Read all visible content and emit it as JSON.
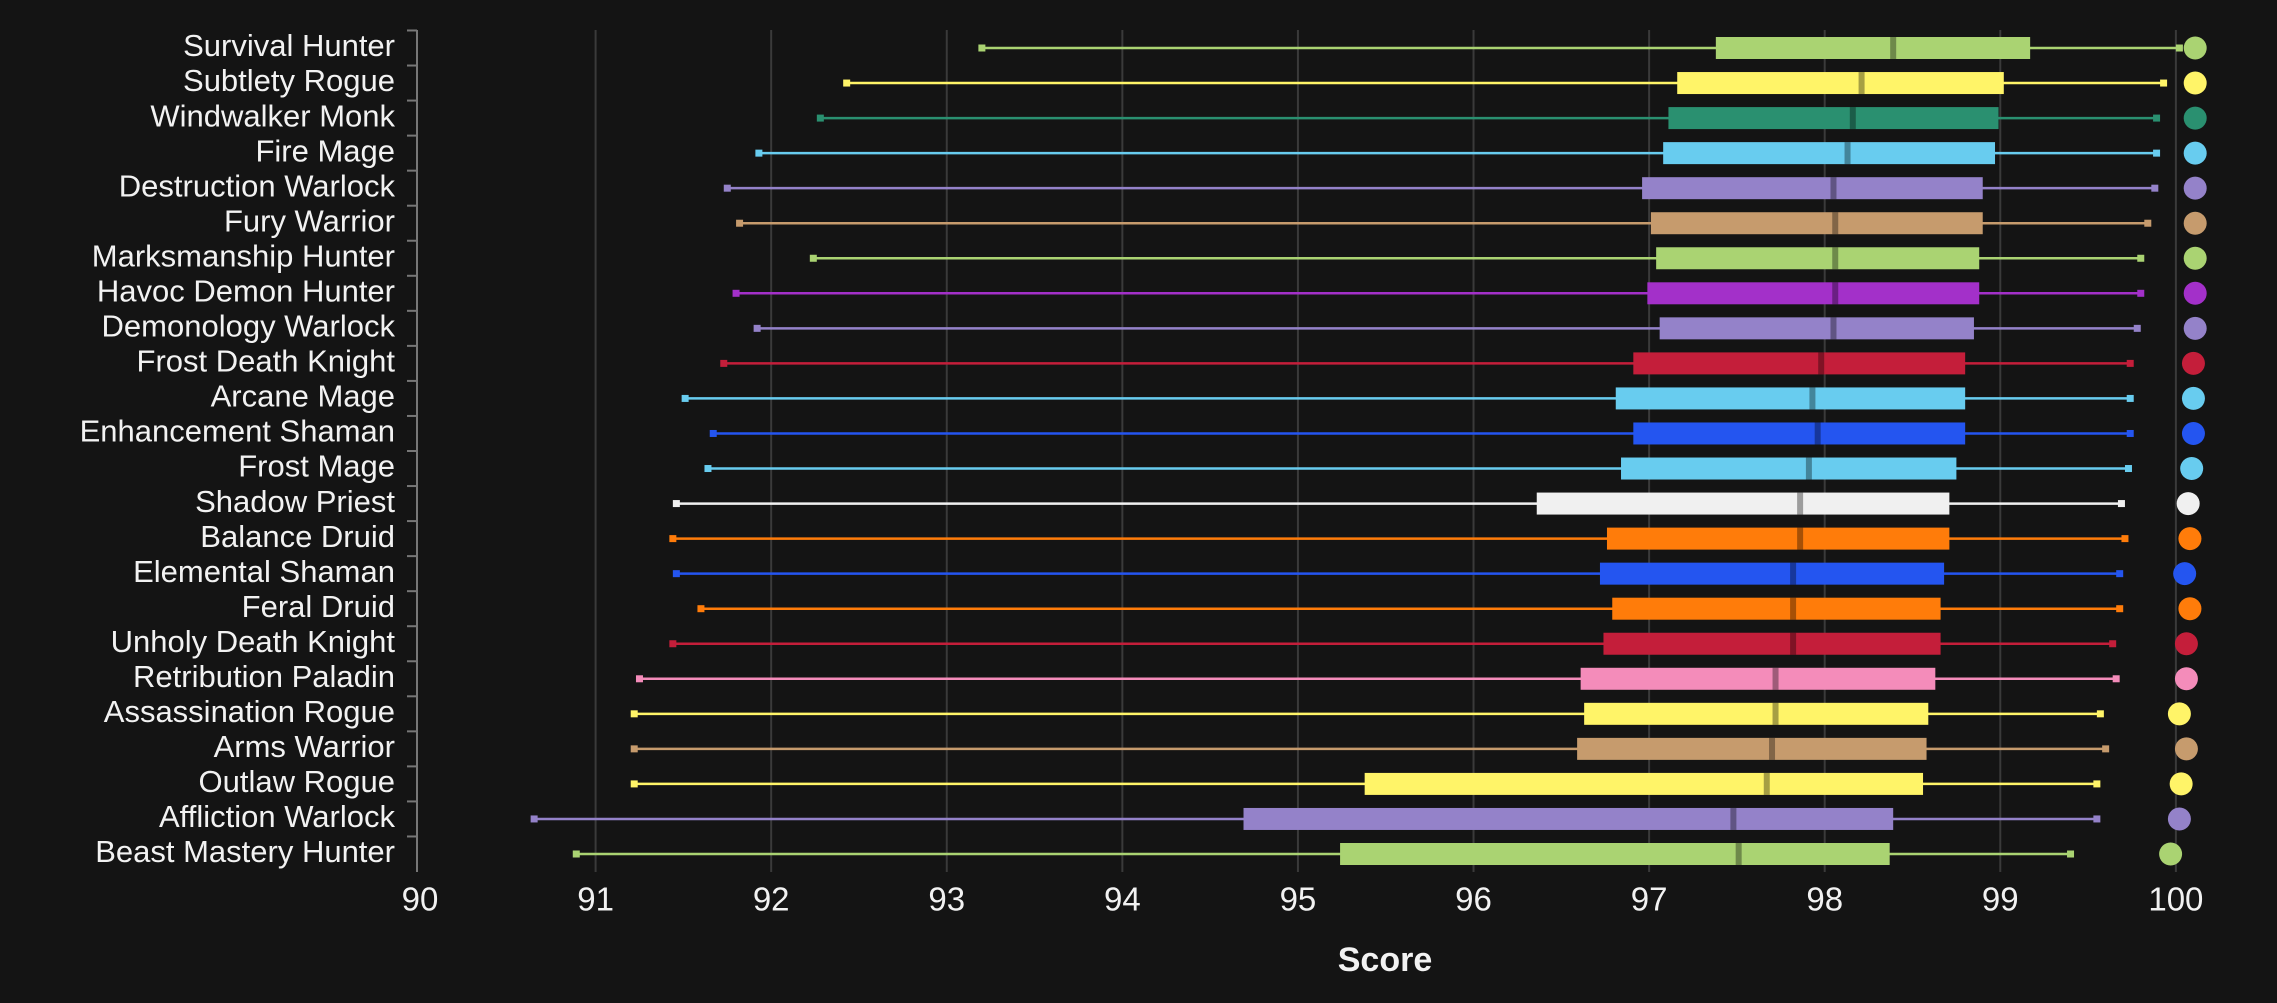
{
  "chart_data": {
    "type": "boxplot",
    "x_label": "Score",
    "categories": [
      "Survival Hunter",
      "Subtlety Rogue",
      "Windwalker Monk",
      "Fire Mage",
      "Destruction Warlock",
      "Fury Warrior",
      "Marksmanship Hunter",
      "Havoc Demon Hunter",
      "Demonology Warlock",
      "Frost Death Knight",
      "Arcane Mage",
      "Enhancement Shaman",
      "Frost Mage",
      "Shadow Priest",
      "Balance Druid",
      "Elemental Shaman",
      "Feral Druid",
      "Unholy Death Knight",
      "Retribution Paladin",
      "Assassination Rogue",
      "Arms Warrior",
      "Outlaw Rogue",
      "Affliction Warlock",
      "Beast Mastery Hunter"
    ],
    "low": [
      93.2,
      92.43,
      92.28,
      91.93,
      91.75,
      91.82,
      92.24,
      91.8,
      91.92,
      91.73,
      91.51,
      91.67,
      91.64,
      91.46,
      91.44,
      91.46,
      91.6,
      91.44,
      91.25,
      91.22,
      91.22,
      91.22,
      90.65,
      90.89
    ],
    "q1": [
      97.38,
      97.16,
      97.11,
      97.08,
      96.96,
      97.01,
      97.04,
      96.99,
      97.06,
      96.91,
      96.81,
      96.91,
      96.84,
      96.36,
      96.76,
      96.72,
      96.79,
      96.74,
      96.61,
      96.63,
      96.59,
      95.38,
      94.69,
      95.24
    ],
    "median": [
      98.39,
      98.21,
      98.16,
      98.13,
      98.05,
      98.06,
      98.06,
      98.06,
      98.05,
      97.98,
      97.93,
      97.96,
      97.91,
      97.86,
      97.86,
      97.82,
      97.82,
      97.82,
      97.72,
      97.72,
      97.7,
      97.67,
      97.48,
      97.51
    ],
    "q3": [
      99.17,
      99.02,
      98.99,
      98.97,
      98.9,
      98.9,
      98.88,
      98.88,
      98.85,
      98.8,
      98.8,
      98.8,
      98.75,
      98.71,
      98.71,
      98.68,
      98.66,
      98.66,
      98.63,
      98.59,
      98.58,
      98.56,
      98.39,
      98.37
    ],
    "high": [
      100.02,
      99.93,
      99.89,
      99.89,
      99.88,
      99.84,
      99.8,
      99.8,
      99.78,
      99.74,
      99.74,
      99.74,
      99.73,
      99.69,
      99.71,
      99.68,
      99.68,
      99.64,
      99.66,
      99.57,
      99.6,
      99.55,
      99.55,
      99.4
    ],
    "max": [
      100.11,
      100.11,
      100.11,
      100.11,
      100.11,
      100.11,
      100.11,
      100.11,
      100.11,
      100.1,
      100.1,
      100.1,
      100.09,
      100.07,
      100.08,
      100.05,
      100.08,
      100.06,
      100.06,
      100.02,
      100.06,
      100.03,
      100.02,
      99.97
    ],
    "colors": [
      "#aad372",
      "#fff468",
      "#2a9070",
      "#68ccef",
      "#9482c9",
      "#c69b6d",
      "#aad372",
      "#a330c9",
      "#9482c9",
      "#c41e3a",
      "#68ccef",
      "#2455f0",
      "#68ccef",
      "#f0f0f0",
      "#ff7c0a",
      "#2455f0",
      "#ff7c0a",
      "#c41e3a",
      "#f48cba",
      "#fff468",
      "#c69b6d",
      "#fff468",
      "#9482c9",
      "#aad372"
    ],
    "xlim": [
      90,
      100.2
    ],
    "xticks": [
      90,
      91,
      92,
      93,
      94,
      95,
      96,
      97,
      98,
      99,
      100
    ],
    "grid": true
  }
}
